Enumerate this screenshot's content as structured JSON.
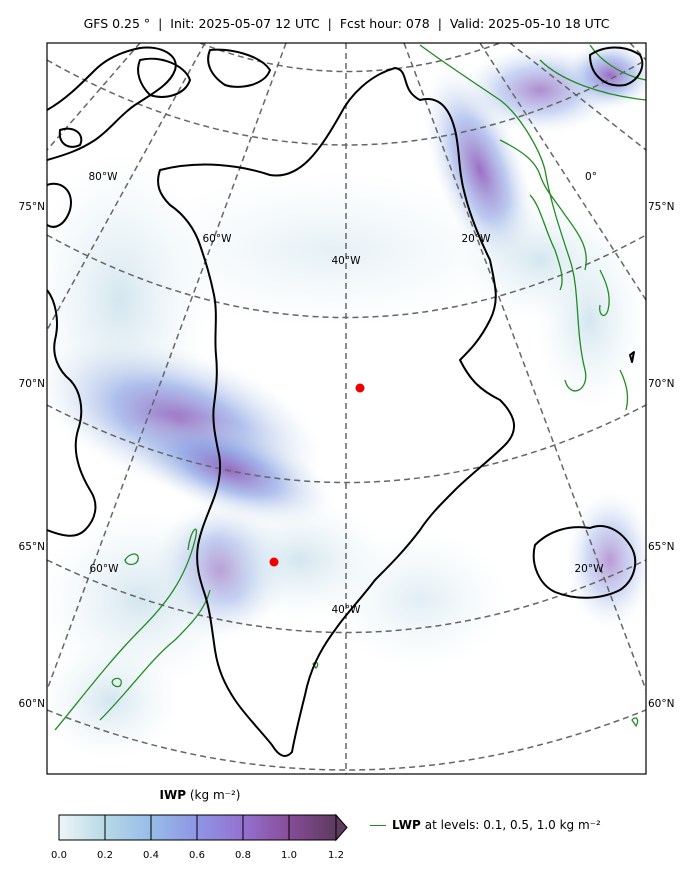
{
  "title": {
    "text": "GFS 0.25$^\\circ$  |  Init: 2025-05-07 12 UTC  |  Fcst hour: 078  |  Valid: 2025-05-10 18 UTC",
    "display": "GFS 0.25 °  |  Init: 2025-05-07 12 UTC  |  Fcst hour: 078  |  Valid: 2025-05-10 18 UTC"
  },
  "map": {
    "region": "Greenland",
    "lat_labels_left": [
      "75°N",
      "70°N",
      "65°N",
      "60°N"
    ],
    "lat_labels_right": [
      "75°N",
      "70°N",
      "65°N",
      "60°N"
    ],
    "lon_labels_top": [
      "80°W",
      "60°W",
      "40°W",
      "20°W",
      "0°"
    ],
    "lon_labels_bottom": [
      "60°W",
      "40°W",
      "20°W"
    ],
    "markers": [
      {
        "name": "marker-north",
        "color": "#ee0000"
      },
      {
        "name": "marker-south",
        "color": "#ee0000"
      }
    ],
    "colors": {
      "coastline": "#000000",
      "gridlines": "#666666",
      "lwp_contour": "#228b22",
      "iwp_low": "#e3f0f2",
      "iwp_mid": "#8fa6e6",
      "iwp_high": "#8b55b8"
    }
  },
  "colorbar": {
    "title_bold": "IWP",
    "title_unit": "(kg m$^{-2}$)",
    "title_unit_display": "(kg m⁻²)",
    "ticks": [
      "0.0",
      "0.2",
      "0.4",
      "0.6",
      "0.8",
      "1.0",
      "1.2"
    ],
    "colors": [
      "#e6f1f2",
      "#a9cfe3",
      "#8ea7e8",
      "#9477d6",
      "#8a5aa8",
      "#6e3d6f"
    ]
  },
  "legend": {
    "label_bold": "LWP",
    "label_rest": "at levels: 0.1, 0.5, 1.0  kg m$^{-2}$",
    "label_rest_display": "at levels: 0.1, 0.5, 1.0  kg m⁻²"
  }
}
